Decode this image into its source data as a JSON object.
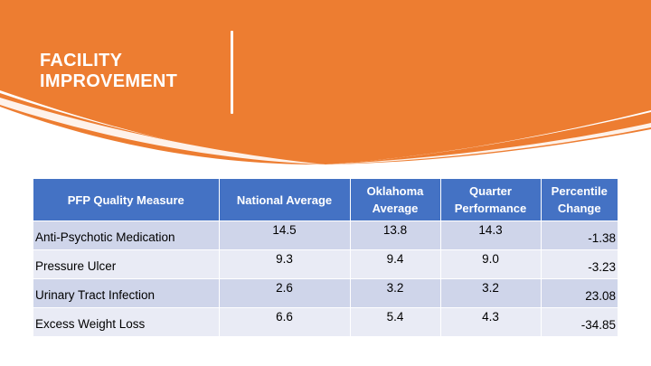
{
  "slide": {
    "title_lines": [
      "FACILITY",
      "IMPROVEMENT"
    ],
    "colors": {
      "banner": "#ed7d31",
      "header": "#4472c4",
      "row_odd": "#cfd5ea",
      "row_even": "#e9ebf5"
    }
  },
  "table": {
    "headers": [
      "PFP Quality Measure",
      "National Average",
      "Oklahoma Average",
      "Quarter Performance",
      "Percentile Change"
    ],
    "rows": [
      [
        "Anti-Psychotic Medication",
        "14.5",
        "13.8",
        "14.3",
        "-1.38"
      ],
      [
        "Pressure Ulcer",
        "9.3",
        "9.4",
        "9.0",
        "-3.23"
      ],
      [
        "Urinary Tract Infection",
        "2.6",
        "3.2",
        "3.2",
        "23.08"
      ],
      [
        "Excess Weight Loss",
        "6.6",
        "5.4",
        "4.3",
        "-34.85"
      ]
    ]
  }
}
